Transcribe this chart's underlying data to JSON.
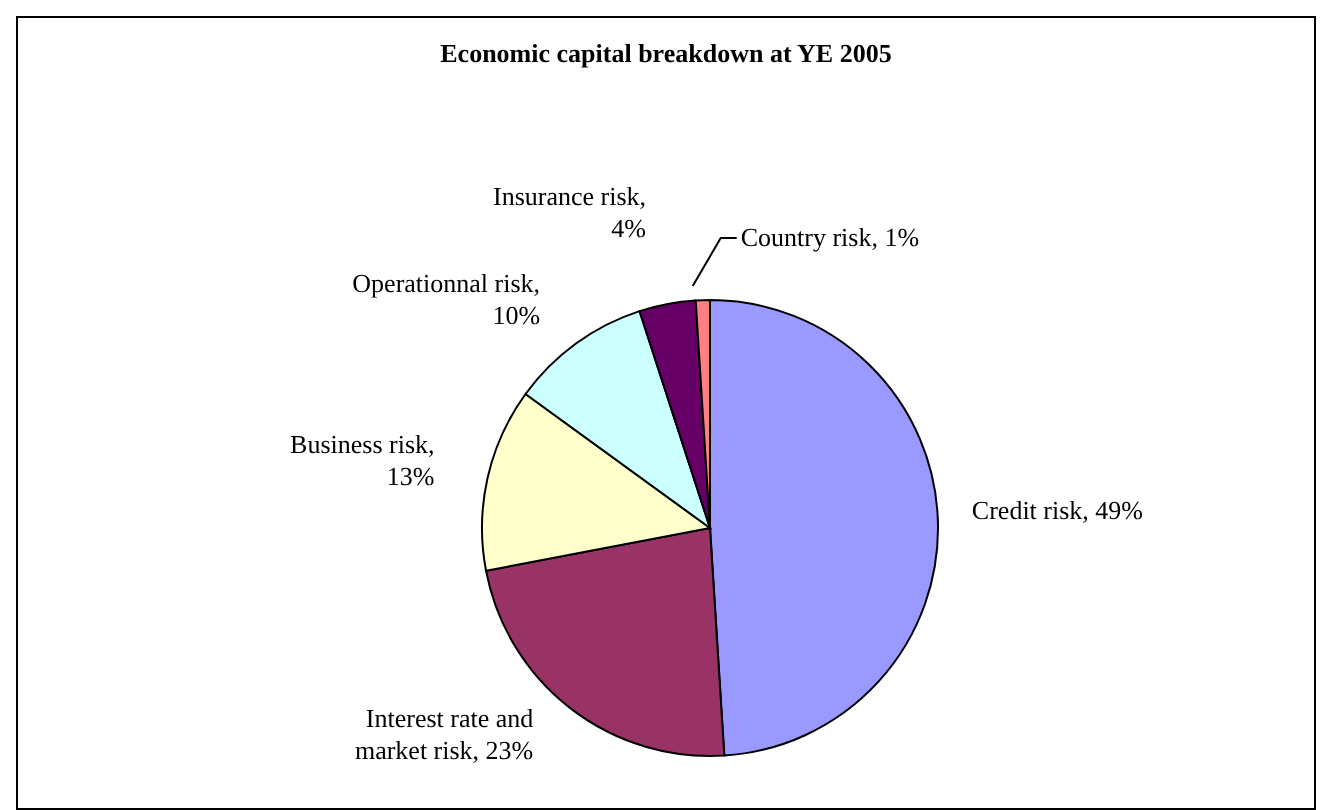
{
  "chart_data": {
    "type": "pie",
    "title": "Economic capital breakdown at YE 2005",
    "categories": [
      "Credit risk, 49%",
      "Interest rate and market risk, 23%",
      "Business risk, 13%",
      "Operationnal risk, 10%",
      "Insurance risk, 4%",
      "Country risk, 1%"
    ],
    "values": [
      49,
      23,
      13,
      10,
      4,
      1
    ],
    "colors": [
      "#9999ff",
      "#993366",
      "#ffffcc",
      "#ccffff",
      "#660066",
      "#ff8080"
    ]
  }
}
